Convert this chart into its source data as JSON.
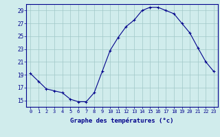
{
  "hours": [
    0,
    1,
    2,
    3,
    4,
    5,
    6,
    7,
    8,
    9,
    10,
    11,
    12,
    13,
    14,
    15,
    16,
    17,
    18,
    19,
    20,
    21,
    22,
    23
  ],
  "temperatures": [
    19.2,
    18.0,
    16.8,
    16.5,
    16.2,
    15.2,
    14.8,
    14.8,
    16.2,
    19.5,
    22.8,
    24.8,
    26.5,
    27.5,
    29.0,
    29.5,
    29.5,
    29.0,
    28.5,
    27.0,
    25.5,
    23.2,
    21.0,
    19.5
  ],
  "line_color": "#00008B",
  "marker": "+",
  "marker_size": 3,
  "bg_color": "#d0ecec",
  "grid_color": "#a0c8c8",
  "xlabel": "Graphe des températures (°c)",
  "xlabel_color": "#00008B",
  "tick_color": "#00008B",
  "ylim": [
    14,
    30
  ],
  "xlim": [
    -0.5,
    23.5
  ],
  "yticks": [
    15,
    17,
    19,
    21,
    23,
    25,
    27,
    29
  ],
  "xtick_labels": [
    "0",
    "1",
    "2",
    "3",
    "4",
    "5",
    "6",
    "7",
    "8",
    "9",
    "10",
    "11",
    "12",
    "13",
    "14",
    "15",
    "16",
    "17",
    "18",
    "19",
    "20",
    "21",
    "22",
    "23"
  ],
  "figsize": [
    3.2,
    2.0
  ],
  "dpi": 100
}
